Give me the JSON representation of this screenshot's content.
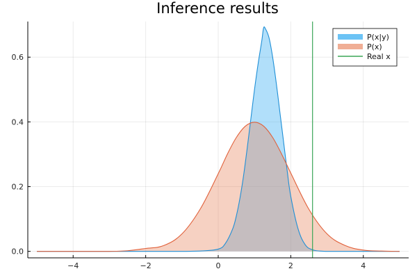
{
  "chart_data": {
    "type": "area",
    "title": "Inference results",
    "xlabel": "",
    "ylabel": "",
    "xlim": [
      -5.25,
      5.25
    ],
    "ylim": [
      -0.02,
      0.71
    ],
    "grid": true,
    "legend_position": "top-right",
    "xticks": [
      -4,
      -2,
      0,
      2,
      4
    ],
    "xtick_labels": [
      "−4",
      "−2",
      "0",
      "2",
      "4"
    ],
    "yticks": [
      0.0,
      0.2,
      0.4,
      0.6
    ],
    "ytick_labels": [
      "0.0",
      "0.2",
      "0.4",
      "0.6"
    ],
    "series": [
      {
        "name": "P(x|y)",
        "kind": "filled-density",
        "line_color": "#1f8fd6",
        "fill_color": "#1fa3f0",
        "fill_opacity": 0.35,
        "x": [
          -5.0,
          -4.5,
          -4.0,
          -3.5,
          -3.0,
          -2.5,
          -2.0,
          -1.5,
          -1.0,
          -0.5,
          0.0,
          0.2,
          0.4,
          0.5,
          0.6,
          0.7,
          0.8,
          0.9,
          1.0,
          1.1,
          1.2,
          1.25,
          1.3,
          1.4,
          1.5,
          1.6,
          1.7,
          1.8,
          1.9,
          2.0,
          2.2,
          2.4,
          2.6,
          2.8,
          3.0,
          3.5,
          4.0,
          4.5,
          5.0
        ],
        "y": [
          0.0,
          0.0,
          0.0,
          0.0,
          0.0,
          0.0,
          0.0,
          0.0,
          0.0,
          0.001,
          0.007,
          0.025,
          0.07,
          0.11,
          0.165,
          0.235,
          0.32,
          0.41,
          0.5,
          0.58,
          0.65,
          0.69,
          0.688,
          0.66,
          0.6,
          0.52,
          0.43,
          0.34,
          0.25,
          0.17,
          0.07,
          0.02,
          0.005,
          0.001,
          0.0,
          0.0,
          0.0,
          0.0,
          0.0
        ]
      },
      {
        "name": "P(x)",
        "kind": "filled-density",
        "line_color": "#e0603a",
        "fill_color": "#e8855f",
        "fill_opacity": 0.38,
        "x": [
          -5.0,
          -4.5,
          -4.0,
          -3.5,
          -3.0,
          -2.5,
          -2.0,
          -1.5,
          -1.0,
          -0.5,
          0.0,
          0.25,
          0.5,
          0.75,
          1.0,
          1.25,
          1.5,
          1.75,
          2.0,
          2.5,
          3.0,
          3.5,
          4.0,
          4.5,
          5.0
        ],
        "y": [
          0.0,
          0.0,
          0.0,
          0.0,
          0.0,
          0.002,
          0.009,
          0.018,
          0.054,
          0.13,
          0.24,
          0.3,
          0.352,
          0.387,
          0.399,
          0.387,
          0.352,
          0.3,
          0.242,
          0.13,
          0.054,
          0.018,
          0.004,
          0.001,
          0.0
        ]
      },
      {
        "name": "Real x",
        "kind": "vertical-line",
        "line_color": "#3aa657",
        "x_value": 2.6
      }
    ]
  }
}
